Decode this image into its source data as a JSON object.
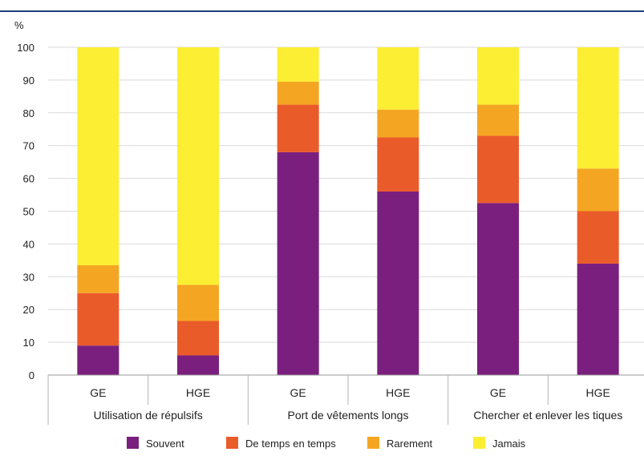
{
  "chart_data": {
    "type": "bar",
    "stacked": true,
    "ylabel": "%",
    "ylim": [
      0,
      100
    ],
    "yticks": [
      0,
      10,
      20,
      30,
      40,
      50,
      60,
      70,
      80,
      90,
      100
    ],
    "grid": true,
    "groups": [
      {
        "label": "Utilisation de répulsifs",
        "categories": [
          "GE",
          "HGE"
        ]
      },
      {
        "label": "Port de vêtements longs",
        "categories": [
          "GE",
          "HGE"
        ]
      },
      {
        "label": "Chercher et enlever les tiques",
        "categories": [
          "GE",
          "HGE"
        ]
      }
    ],
    "series": [
      {
        "name": "Souvent",
        "color": "#7b1f7e",
        "values": [
          9,
          6,
          68,
          56,
          52.5,
          34
        ]
      },
      {
        "name": "De temps en temps",
        "color": "#ea5b2a",
        "values": [
          16,
          10.5,
          14.5,
          16.5,
          20.5,
          16
        ]
      },
      {
        "name": "Rarement",
        "color": "#f4a623",
        "values": [
          8.5,
          11,
          7,
          8.5,
          9.5,
          13
        ]
      },
      {
        "name": "Jamais",
        "color": "#fcee33",
        "values": [
          66.5,
          72.5,
          10.5,
          19,
          17.5,
          37
        ]
      }
    ],
    "legend_position": "bottom"
  }
}
